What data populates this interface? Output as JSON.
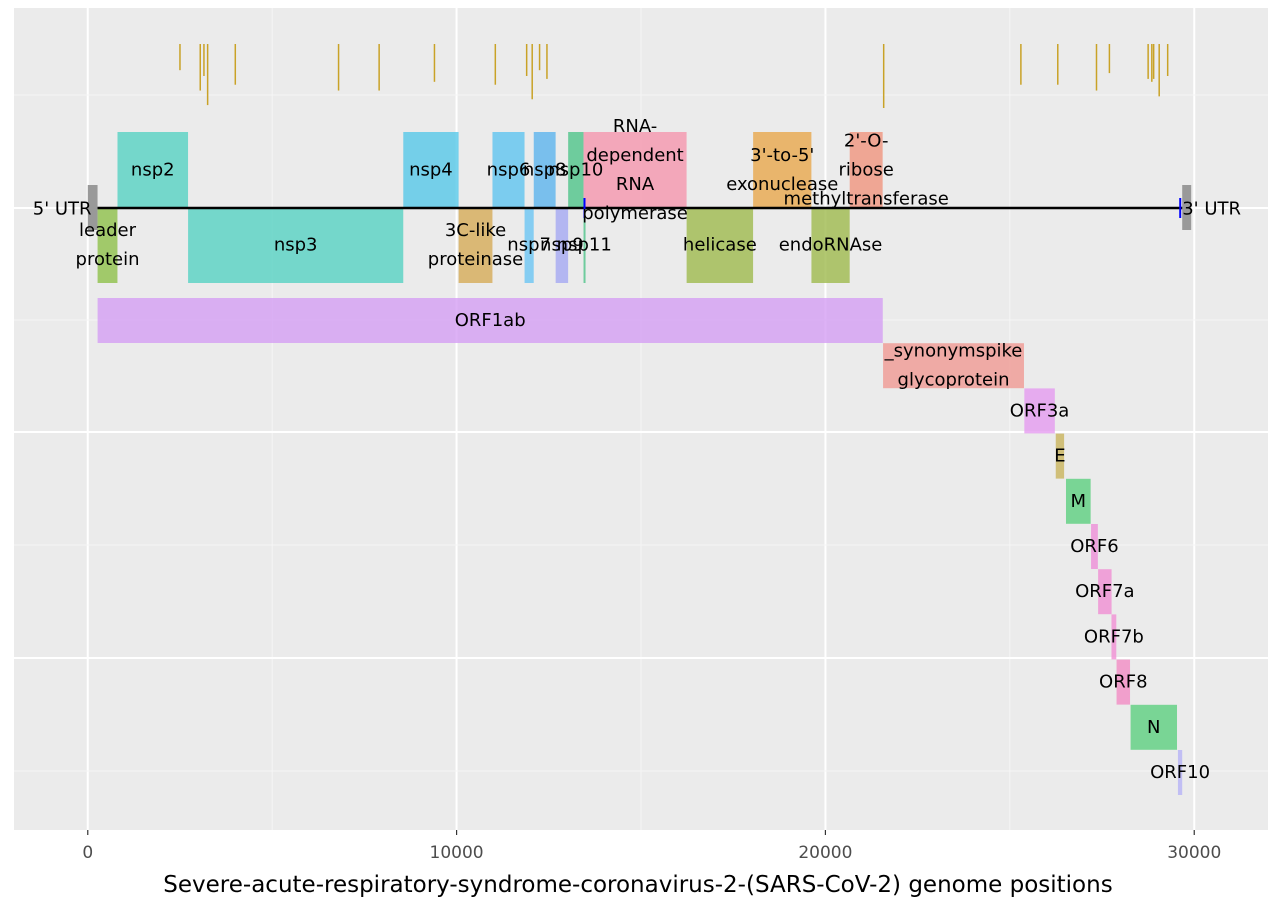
{
  "chart_data": {
    "type": "genome-map",
    "title": "",
    "xlabel": "Severe-acute-respiratory-syndrome-coronavirus-2-(SARS-CoV-2)  genome positions",
    "xlim": [
      -2000,
      32000
    ],
    "xticks": [
      0,
      10000,
      20000,
      30000
    ],
    "xtick_labels": [
      "0",
      "10000",
      "20000",
      "30000"
    ],
    "grid": true,
    "genome_line": {
      "start": 0,
      "end": 29903,
      "color": "#000000"
    },
    "utr": [
      {
        "name": "5' UTR",
        "start": 0,
        "end": 265,
        "color": "#999999"
      },
      {
        "name": "3' UTR",
        "start": 29674,
        "end": 29903,
        "color": "#999999"
      }
    ],
    "markers": [
      {
        "x": 13468,
        "color": "#0000ff"
      },
      {
        "x": 29620,
        "color": "#0000ff"
      }
    ],
    "variants": [
      {
        "x": 2500,
        "y0": 0.55,
        "y1": 1.0
      },
      {
        "x": 3050,
        "y0": 0.2,
        "y1": 1.0
      },
      {
        "x": 3150,
        "y0": 0.45,
        "y1": 1.0
      },
      {
        "x": 3250,
        "y0": -0.05,
        "y1": 1.0
      },
      {
        "x": 4000,
        "y0": 0.3,
        "y1": 1.0
      },
      {
        "x": 6800,
        "y0": 0.2,
        "y1": 1.0
      },
      {
        "x": 7900,
        "y0": 0.2,
        "y1": 1.0
      },
      {
        "x": 9400,
        "y0": 0.35,
        "y1": 1.0
      },
      {
        "x": 11050,
        "y0": 0.3,
        "y1": 1.0
      },
      {
        "x": 11900,
        "y0": 0.45,
        "y1": 1.0
      },
      {
        "x": 12050,
        "y0": 0.05,
        "y1": 1.0
      },
      {
        "x": 12250,
        "y0": 0.55,
        "y1": 1.0
      },
      {
        "x": 12450,
        "y0": 0.4,
        "y1": 1.0
      },
      {
        "x": 21580,
        "y0": -0.1,
        "y1": 1.0
      },
      {
        "x": 25300,
        "y0": 0.3,
        "y1": 1.0
      },
      {
        "x": 26300,
        "y0": 0.3,
        "y1": 1.0
      },
      {
        "x": 27350,
        "y0": 0.2,
        "y1": 1.0
      },
      {
        "x": 27700,
        "y0": 0.5,
        "y1": 1.0
      },
      {
        "x": 28750,
        "y0": 0.4,
        "y1": 1.0
      },
      {
        "x": 28850,
        "y0": 0.35,
        "y1": 1.0
      },
      {
        "x": 28900,
        "y0": 0.4,
        "y1": 1.0
      },
      {
        "x": 29050,
        "y0": 0.1,
        "y1": 1.0
      },
      {
        "x": 29280,
        "y0": 0.45,
        "y1": 1.0
      }
    ],
    "variant_color": "#c9a227",
    "nsp_upper": [
      {
        "name": "nsp2",
        "lines": [
          "nsp2"
        ],
        "start": 806,
        "end": 2719,
        "color": "#56d2c3"
      },
      {
        "name": "nsp4",
        "lines": [
          "nsp4"
        ],
        "start": 8555,
        "end": 10054,
        "color": "#56c8e8"
      },
      {
        "name": "nsp6",
        "lines": [
          "nsp6"
        ],
        "start": 10973,
        "end": 11842,
        "color": "#5fc4f0"
      },
      {
        "name": "nsp8",
        "lines": [
          "nsp8"
        ],
        "start": 12092,
        "end": 12685,
        "color": "#5cb4ee"
      },
      {
        "name": "nsp10",
        "lines": [
          "nsp10"
        ],
        "start": 13025,
        "end": 13441,
        "color": "#4fc48a"
      },
      {
        "name": "RNA-dependent RNA polymerase",
        "lines": [
          "RNA-",
          "dependent",
          "RNA",
          "polymerase"
        ],
        "start": 13442,
        "end": 16236,
        "color": "#f596ae"
      },
      {
        "name": "3'-to-5' exonuclease",
        "lines": [
          "3'-to-5'",
          "exonuclease"
        ],
        "start": 18040,
        "end": 19620,
        "color": "#e8a84c"
      },
      {
        "name": "2'-O-ribose methyltransferase",
        "lines": [
          "2'-O-",
          "ribose",
          "methyltransferase"
        ],
        "start": 20659,
        "end": 21552,
        "color": "#f0957e"
      }
    ],
    "nsp_lower": [
      {
        "name": "leader protein",
        "lines": [
          "leader",
          "protein"
        ],
        "start": 266,
        "end": 805,
        "color": "#8fc04a"
      },
      {
        "name": "nsp3",
        "lines": [
          "nsp3"
        ],
        "start": 2720,
        "end": 8554,
        "color": "#56d2c3"
      },
      {
        "name": "3C-like proteinase",
        "lines": [
          "3C-like",
          "proteinase"
        ],
        "start": 10055,
        "end": 10972,
        "color": "#d6ab57"
      },
      {
        "name": "nsp7",
        "lines": [
          "nsp7"
        ],
        "start": 11843,
        "end": 12091,
        "color": "#6cc6f4"
      },
      {
        "name": "nsp9",
        "lines": [
          "nsp9"
        ],
        "start": 12686,
        "end": 13024,
        "color": "#a5a9f2"
      },
      {
        "name": "nsp11",
        "lines": [
          "nsp11"
        ],
        "start": 13442,
        "end": 13480,
        "color": "#4fc48a"
      },
      {
        "name": "helicase",
        "lines": [
          "helicase"
        ],
        "start": 16237,
        "end": 18039,
        "color": "#9fba4d"
      },
      {
        "name": "endoRNAse",
        "lines": [
          "endoRNAse"
        ],
        "start": 19621,
        "end": 20658,
        "color": "#9fba4d"
      }
    ],
    "genes": [
      {
        "name": "ORF1ab",
        "lines": [
          "ORF1ab"
        ],
        "start": 266,
        "end": 21555,
        "color": "#d59ff4",
        "row": 0
      },
      {
        "name": "_synonymspike glycoprotein",
        "lines": [
          "_synonymspike",
          "glycoprotein"
        ],
        "start": 21563,
        "end": 25384,
        "color": "#f09a94",
        "row": 1
      },
      {
        "name": "ORF3a",
        "lines": [
          "ORF3a"
        ],
        "start": 25393,
        "end": 26220,
        "color": "#e59bf0",
        "row": 2
      },
      {
        "name": "E",
        "lines": [
          "E"
        ],
        "start": 26245,
        "end": 26472,
        "color": "#c9b45d",
        "row": 3
      },
      {
        "name": "M",
        "lines": [
          "M"
        ],
        "start": 26523,
        "end": 27191,
        "color": "#5ccf7f",
        "row": 4
      },
      {
        "name": "ORF6",
        "lines": [
          "ORF6"
        ],
        "start": 27202,
        "end": 27387,
        "color": "#ee8fd8",
        "row": 5
      },
      {
        "name": "ORF7a",
        "lines": [
          "ORF7a"
        ],
        "start": 27394,
        "end": 27759,
        "color": "#f08ed3",
        "row": 6
      },
      {
        "name": "ORF7b",
        "lines": [
          "ORF7b"
        ],
        "start": 27756,
        "end": 27887,
        "color": "#f190d4",
        "row": 7
      },
      {
        "name": "ORF8",
        "lines": [
          "ORF8"
        ],
        "start": 27894,
        "end": 28259,
        "color": "#f38cc4",
        "row": 8
      },
      {
        "name": "N",
        "lines": [
          "N"
        ],
        "start": 28274,
        "end": 29533,
        "color": "#5ccf7f",
        "row": 9
      },
      {
        "name": "ORF10",
        "lines": [
          "ORF10"
        ],
        "start": 29558,
        "end": 29674,
        "color": "#b6b3f6",
        "row": 10
      }
    ]
  }
}
